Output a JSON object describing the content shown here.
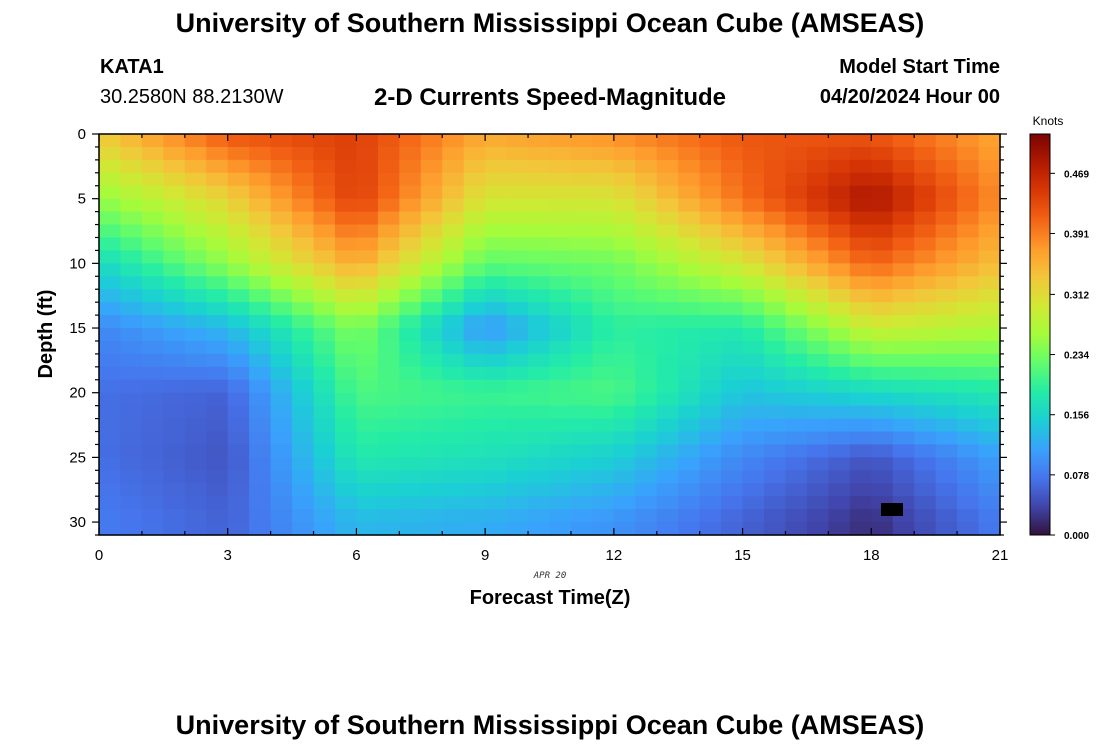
{
  "header": {
    "title": "University of Southern Mississippi Ocean Cube (AMSEAS)",
    "station": "KATA1",
    "coordinates": "30.2580N  88.2130W",
    "subtitle": "2-D Currents Speed-Magnitude",
    "model_start_label": "Model Start Time",
    "model_start_value": "04/20/2024 Hour 00"
  },
  "footer": {
    "title": "University of Southern Mississippi Ocean Cube (AMSEAS)"
  },
  "chart_data": {
    "type": "heatmap",
    "title": "2-D Currents Speed-Magnitude",
    "xlabel": "Forecast Time(Z)",
    "ylabel": "Depth (ft)",
    "x_ticks": [
      0,
      3,
      6,
      9,
      12,
      15,
      18,
      21
    ],
    "y_ticks": [
      0,
      5,
      10,
      15,
      20,
      25,
      30
    ],
    "xlim": [
      0,
      21
    ],
    "ylim": [
      31,
      0
    ],
    "date_annotation": "APR 20",
    "colorbar": {
      "label": "Knots",
      "min": 0.0,
      "max": 0.52,
      "ticks": [
        "0.469",
        "0.391",
        "0.312",
        "0.234",
        "0.156",
        "0.078",
        "0.000"
      ],
      "colors": [
        "#30123b",
        "#4145ab",
        "#4675ed",
        "#39a2fc",
        "#1bcfd4",
        "#24eca6",
        "#61fc6c",
        "#a4fc3b",
        "#d1e834",
        "#f3c63a",
        "#fe9b2d",
        "#f36315",
        "#d93806",
        "#b11901",
        "#7a0402"
      ]
    },
    "grid": {
      "x_hours": [
        0,
        3,
        6,
        9,
        12,
        15,
        18,
        21
      ],
      "depth_ft": [
        0,
        5,
        10,
        15,
        20,
        25,
        30
      ],
      "speed_knots": [
        [
          0.33,
          0.42,
          0.44,
          0.36,
          0.38,
          0.42,
          0.42,
          0.36
        ],
        [
          0.25,
          0.32,
          0.44,
          0.3,
          0.3,
          0.4,
          0.49,
          0.38
        ],
        [
          0.16,
          0.25,
          0.36,
          0.22,
          0.23,
          0.3,
          0.41,
          0.34
        ],
        [
          0.09,
          0.13,
          0.24,
          0.1,
          0.19,
          0.18,
          0.29,
          0.27
        ],
        [
          0.07,
          0.06,
          0.21,
          0.2,
          0.21,
          0.14,
          0.16,
          0.18
        ],
        [
          0.07,
          0.05,
          0.18,
          0.17,
          0.15,
          0.09,
          0.05,
          0.11
        ],
        [
          0.08,
          0.06,
          0.13,
          0.12,
          0.1,
          0.06,
          0.02,
          0.08
        ]
      ]
    }
  }
}
